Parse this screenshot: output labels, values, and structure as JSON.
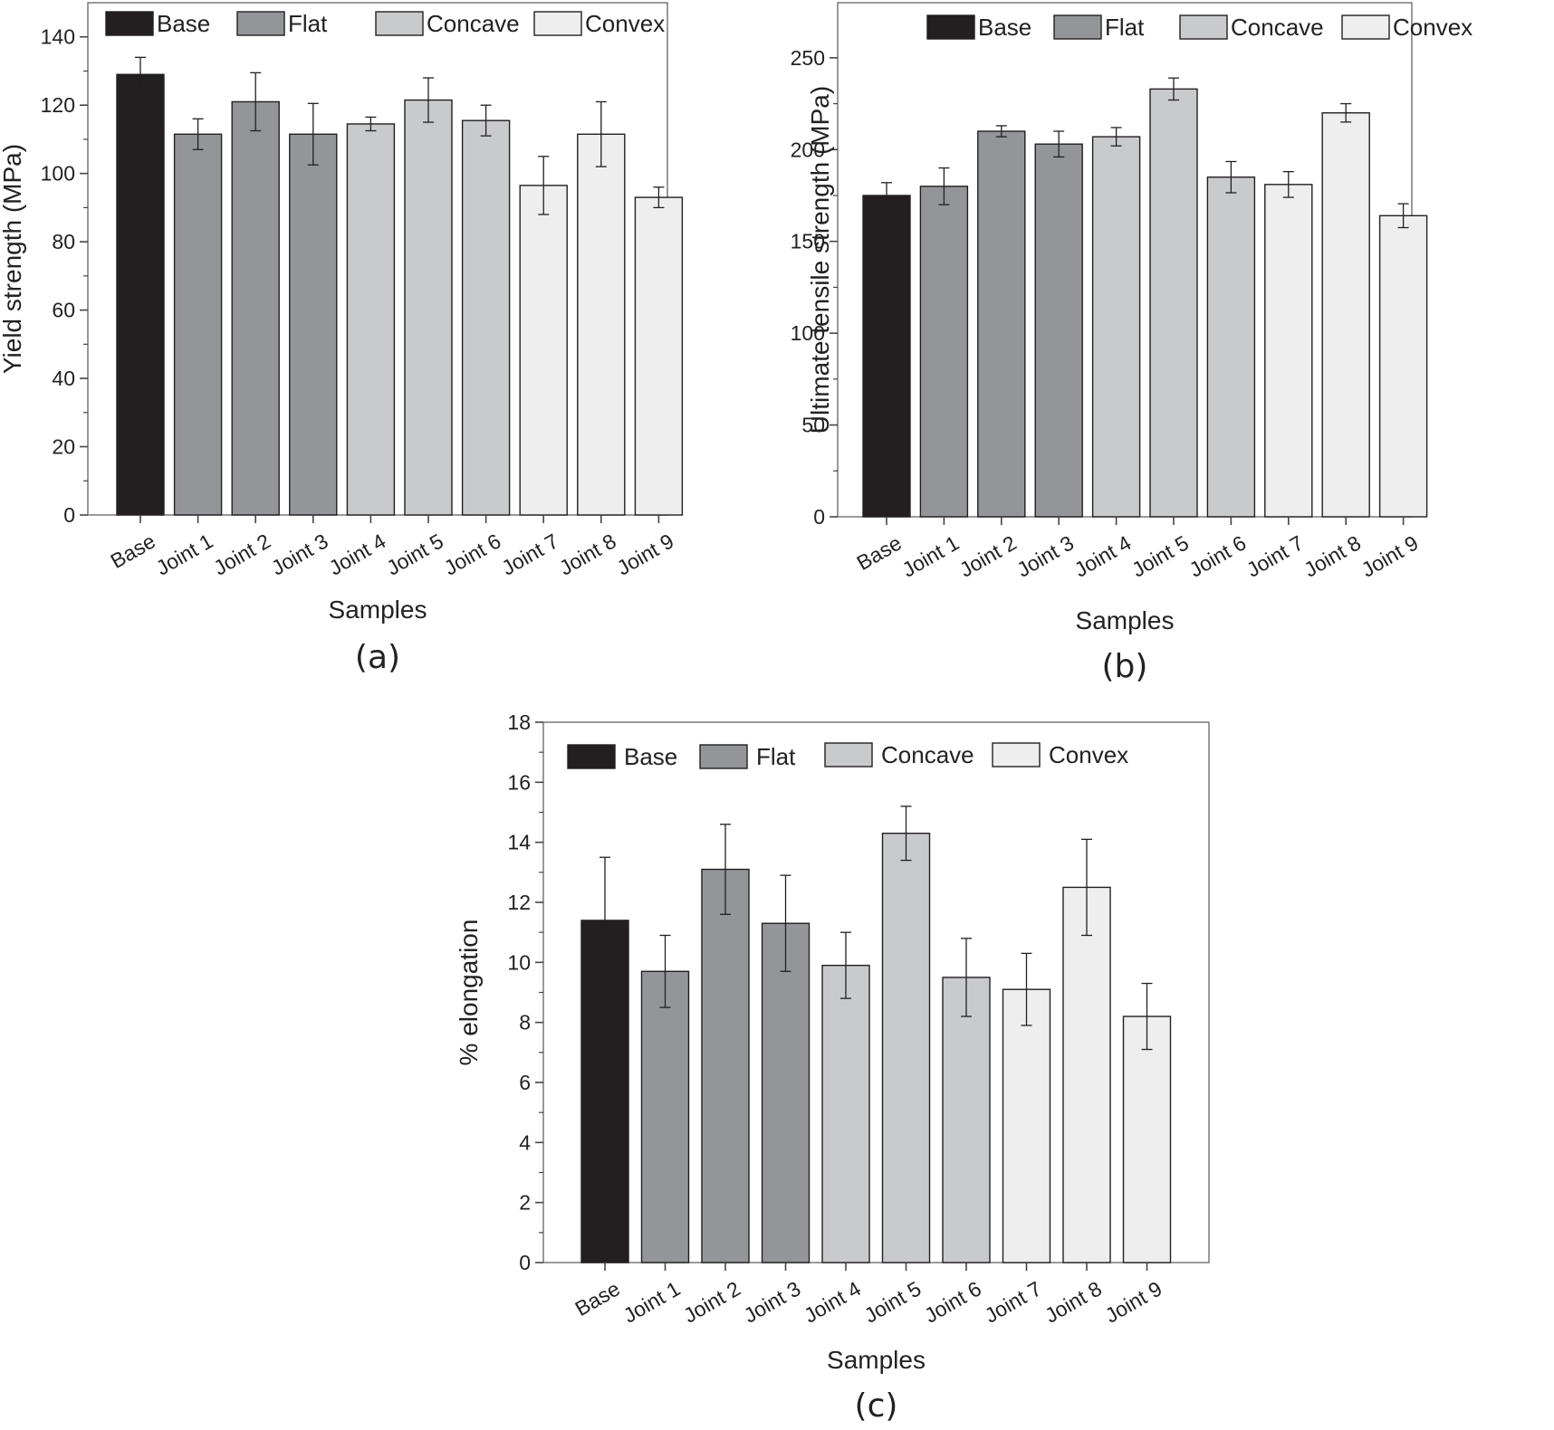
{
  "figure": {
    "legend": [
      {
        "name": "Base",
        "color": "#231f20"
      },
      {
        "name": "Flat",
        "color": "#939598"
      },
      {
        "name": "Concave",
        "color": "#c9cacc"
      },
      {
        "name": "Convex",
        "color": "#eeeeee"
      }
    ]
  },
  "chart_data": [
    {
      "type": "bar",
      "panel_label": "(a)",
      "title": "",
      "xlabel": "Samples",
      "ylabel": "Yield strength (MPa)",
      "ylim": [
        0,
        150
      ],
      "yticks": [
        0,
        20,
        40,
        60,
        80,
        100,
        120,
        140
      ],
      "yticklabels": [
        "0",
        "20",
        "40",
        "60",
        "80",
        "100",
        "120",
        "140"
      ],
      "categories": [
        "Base",
        "Joint 1",
        "Joint 2",
        "Joint 3",
        "Joint 4",
        "Joint 5",
        "Joint 6",
        "Joint 7",
        "Joint 8",
        "Joint 9"
      ],
      "groups": [
        "Base",
        "Flat",
        "Flat",
        "Flat",
        "Concave",
        "Concave",
        "Concave",
        "Convex",
        "Convex",
        "Convex"
      ],
      "values": [
        129,
        111.5,
        121,
        111.5,
        114.5,
        121.5,
        115.5,
        96.5,
        111.5,
        93
      ],
      "errors": [
        5,
        4.5,
        8.5,
        9,
        2,
        6.5,
        4.5,
        8.5,
        9.5,
        3
      ]
    },
    {
      "type": "bar",
      "panel_label": "(b)",
      "title": "",
      "xlabel": "Samples",
      "ylabel": "Ultimate tensile strength (MPa)",
      "ylim": [
        0,
        280
      ],
      "yticks": [
        0,
        50,
        100,
        150,
        200,
        250
      ],
      "yticklabels": [
        "0",
        "50",
        "100",
        "150",
        "200",
        "250"
      ],
      "categories": [
        "Base",
        "Joint 1",
        "Joint 2",
        "Joint 3",
        "Joint 4",
        "Joint 5",
        "Joint 6",
        "Joint 7",
        "Joint 8",
        "Joint 9"
      ],
      "groups": [
        "Base",
        "Flat",
        "Flat",
        "Flat",
        "Concave",
        "Concave",
        "Concave",
        "Convex",
        "Convex",
        "Convex"
      ],
      "values": [
        175,
        180,
        210,
        203,
        207,
        233,
        185,
        181,
        220,
        164
      ],
      "errors": [
        7,
        10,
        3,
        7,
        5,
        6,
        8.5,
        7,
        5,
        6.5
      ]
    },
    {
      "type": "bar",
      "panel_label": "(c)",
      "title": "",
      "xlabel": "Samples",
      "ylabel": "% elongation",
      "ylim": [
        0,
        18
      ],
      "yticks": [
        0,
        2,
        4,
        6,
        8,
        10,
        12,
        14,
        16,
        18
      ],
      "yticklabels": [
        "0",
        "2",
        "4",
        "6",
        "8",
        "10",
        "12",
        "14",
        "16",
        "18"
      ],
      "categories": [
        "Base",
        "Joint 1",
        "Joint 2",
        "Joint 3",
        "Joint 4",
        "Joint 5",
        "Joint 6",
        "Joint 7",
        "Joint 8",
        "Joint 9"
      ],
      "groups": [
        "Base",
        "Flat",
        "Flat",
        "Flat",
        "Concave",
        "Concave",
        "Concave",
        "Convex",
        "Convex",
        "Convex"
      ],
      "values": [
        11.4,
        9.7,
        13.1,
        11.3,
        9.9,
        14.3,
        9.5,
        9.1,
        12.5,
        8.2
      ],
      "errors": [
        2.1,
        1.2,
        1.5,
        1.6,
        1.1,
        0.9,
        1.3,
        1.2,
        1.6,
        1.1
      ]
    }
  ]
}
